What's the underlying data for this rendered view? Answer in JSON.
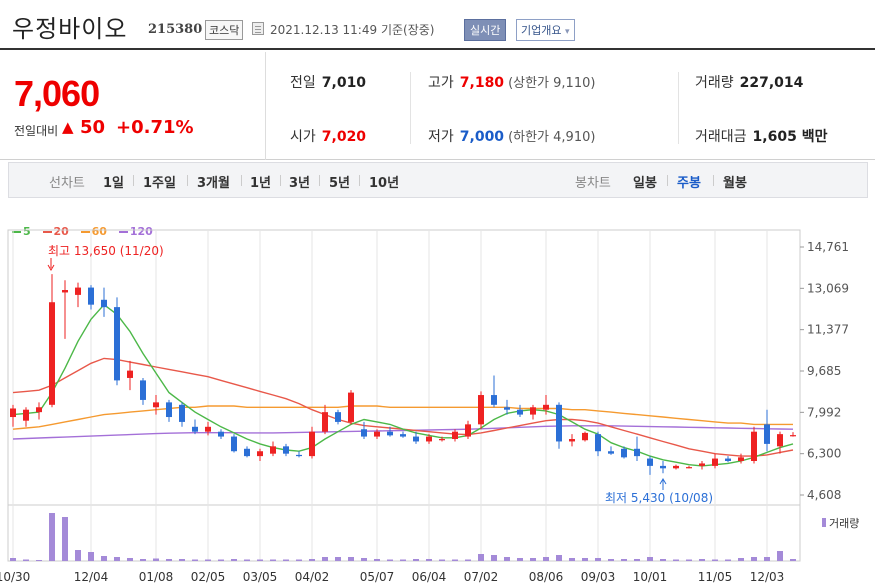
{
  "header": {
    "name": "우정바이오",
    "code": "215380",
    "market": "코스닥",
    "datetime": "2021.12.13 11:49",
    "basis": "기준(장중)",
    "realtime_btn": "실시간",
    "overview_btn": "기업개요"
  },
  "price": {
    "current": "7,060",
    "change_label": "전일대비",
    "change_arrow": "▲",
    "change": "50",
    "change_pct": "+0.71%"
  },
  "stats": {
    "prev_label": "전일",
    "prev": "7,010",
    "open_label": "시가",
    "open": "7,020",
    "high_label": "고가",
    "high": "7,180",
    "upper_limit": "(상한가 9,110)",
    "low_label": "저가",
    "low": "7,000",
    "lower_limit": "(하한가 4,910)",
    "volume_label": "거래량",
    "volume": "227,014",
    "amount_label": "거래대금",
    "amount": "1,605 백만"
  },
  "period": {
    "line_label": "선차트",
    "line_options": [
      "1일",
      "1주일",
      "3개월",
      "1년",
      "3년",
      "5년",
      "10년"
    ],
    "candle_label": "봉차트",
    "candle_options": [
      "일봉",
      "주봉",
      "월봉"
    ],
    "active": "주봉"
  },
  "colors": {
    "up": "#e22",
    "down": "#2b6fd6",
    "ma5": "#4cb848",
    "ma20": "#e8584a",
    "ma60": "#f59a30",
    "ma120": "#a470d8",
    "volume": "#a48ad8"
  },
  "chart_data": {
    "type": "candlestick",
    "legend": [
      {
        "name": "5",
        "color": "#4cb848"
      },
      {
        "name": "20",
        "color": "#e8584a"
      },
      {
        "name": "60",
        "color": "#f59a30"
      },
      {
        "name": "120",
        "color": "#a470d8"
      }
    ],
    "y_ticks": [
      "14,761",
      "13,069",
      "11,377",
      "9,685",
      "7,992",
      "6,300",
      "4,608"
    ],
    "y_tick_values": [
      14761,
      13069,
      11377,
      9685,
      7992,
      6300,
      4608
    ],
    "x_ticks": [
      "10/30",
      "12/04",
      "01/08",
      "02/05",
      "03/05",
      "04/02",
      "05/07",
      "06/04",
      "07/02",
      "08/06",
      "09/03",
      "10/01",
      "11/05",
      "12/03"
    ],
    "x_tick_index": [
      0,
      6,
      11,
      15,
      19,
      23,
      28,
      32,
      36,
      41,
      45,
      49,
      54,
      58
    ],
    "annotation_high": "최고 13,650 (11/20)",
    "annotation_high_index": 3,
    "annotation_high_value": 13650,
    "annotation_low": "최저 5,430 (10/08)",
    "annotation_low_index": 50,
    "annotation_low_value": 5430,
    "volume_label": "거래량",
    "candles": [
      {
        "o": 7800,
        "h": 8300,
        "l": 7400,
        "c": 8150
      },
      {
        "o": 7650,
        "h": 8200,
        "l": 7400,
        "c": 8100
      },
      {
        "o": 8000,
        "h": 8400,
        "l": 7700,
        "c": 8200
      },
      {
        "o": 8300,
        "h": 13650,
        "l": 8200,
        "c": 12500
      },
      {
        "o": 12900,
        "h": 13400,
        "l": 11000,
        "c": 13000
      },
      {
        "o": 12800,
        "h": 13300,
        "l": 12300,
        "c": 13100
      },
      {
        "o": 13100,
        "h": 13200,
        "l": 12200,
        "c": 12400
      },
      {
        "o": 12600,
        "h": 13100,
        "l": 11900,
        "c": 12300
      },
      {
        "o": 12300,
        "h": 12700,
        "l": 9100,
        "c": 9300
      },
      {
        "o": 9400,
        "h": 10100,
        "l": 8900,
        "c": 9700
      },
      {
        "o": 9300,
        "h": 9400,
        "l": 8300,
        "c": 8500
      },
      {
        "o": 8200,
        "h": 8700,
        "l": 7900,
        "c": 8400
      },
      {
        "o": 8400,
        "h": 8500,
        "l": 7600,
        "c": 7800
      },
      {
        "o": 8300,
        "h": 8400,
        "l": 7400,
        "c": 7600
      },
      {
        "o": 7400,
        "h": 7700,
        "l": 7100,
        "c": 7200
      },
      {
        "o": 7200,
        "h": 7600,
        "l": 7050,
        "c": 7400
      },
      {
        "o": 7200,
        "h": 7300,
        "l": 6900,
        "c": 7000
      },
      {
        "o": 7000,
        "h": 7100,
        "l": 6350,
        "c": 6400
      },
      {
        "o": 6500,
        "h": 6600,
        "l": 6150,
        "c": 6200
      },
      {
        "o": 6200,
        "h": 6500,
        "l": 6000,
        "c": 6400
      },
      {
        "o": 6300,
        "h": 6800,
        "l": 6200,
        "c": 6600
      },
      {
        "o": 6600,
        "h": 6700,
        "l": 6200,
        "c": 6300
      },
      {
        "o": 6250,
        "h": 6400,
        "l": 6150,
        "c": 6200
      },
      {
        "o": 6200,
        "h": 7400,
        "l": 6100,
        "c": 7200
      },
      {
        "o": 7200,
        "h": 8300,
        "l": 7100,
        "c": 8000
      },
      {
        "o": 8000,
        "h": 8100,
        "l": 7500,
        "c": 7600
      },
      {
        "o": 7600,
        "h": 8900,
        "l": 7500,
        "c": 8800
      },
      {
        "o": 7300,
        "h": 7600,
        "l": 6900,
        "c": 7000
      },
      {
        "o": 7000,
        "h": 7300,
        "l": 6900,
        "c": 7200
      },
      {
        "o": 7200,
        "h": 7400,
        "l": 7000,
        "c": 7050
      },
      {
        "o": 7100,
        "h": 7200,
        "l": 6950,
        "c": 7000
      },
      {
        "o": 7000,
        "h": 7200,
        "l": 6700,
        "c": 6800
      },
      {
        "o": 6800,
        "h": 7100,
        "l": 6700,
        "c": 7000
      },
      {
        "o": 6850,
        "h": 7000,
        "l": 6800,
        "c": 6900
      },
      {
        "o": 6900,
        "h": 7300,
        "l": 6800,
        "c": 7200
      },
      {
        "o": 7000,
        "h": 7650,
        "l": 6900,
        "c": 7500
      },
      {
        "o": 7500,
        "h": 8850,
        "l": 7300,
        "c": 8700
      },
      {
        "o": 8700,
        "h": 9500,
        "l": 8200,
        "c": 8300
      },
      {
        "o": 8200,
        "h": 8500,
        "l": 7900,
        "c": 8100
      },
      {
        "o": 8100,
        "h": 8300,
        "l": 7800,
        "c": 7900
      },
      {
        "o": 7900,
        "h": 8300,
        "l": 7700,
        "c": 8200
      },
      {
        "o": 8100,
        "h": 8700,
        "l": 7900,
        "c": 8300
      },
      {
        "o": 8300,
        "h": 8400,
        "l": 6500,
        "c": 6800
      },
      {
        "o": 6800,
        "h": 7100,
        "l": 6600,
        "c": 6900
      },
      {
        "o": 6850,
        "h": 7200,
        "l": 6800,
        "c": 7150
      },
      {
        "o": 7100,
        "h": 7200,
        "l": 6200,
        "c": 6400
      },
      {
        "o": 6400,
        "h": 6600,
        "l": 6250,
        "c": 6300
      },
      {
        "o": 6500,
        "h": 6600,
        "l": 6100,
        "c": 6150
      },
      {
        "o": 6500,
        "h": 7000,
        "l": 6000,
        "c": 6200
      },
      {
        "o": 6100,
        "h": 6200,
        "l": 5430,
        "c": 5800
      },
      {
        "o": 5800,
        "h": 6000,
        "l": 5500,
        "c": 5700
      },
      {
        "o": 5700,
        "h": 5850,
        "l": 5650,
        "c": 5800
      },
      {
        "o": 5750,
        "h": 5800,
        "l": 5700,
        "c": 5750
      },
      {
        "o": 5800,
        "h": 6000,
        "l": 5650,
        "c": 5900
      },
      {
        "o": 5800,
        "h": 6300,
        "l": 5700,
        "c": 6100
      },
      {
        "o": 6100,
        "h": 6200,
        "l": 5950,
        "c": 6000
      },
      {
        "o": 6000,
        "h": 6300,
        "l": 5900,
        "c": 6150
      },
      {
        "o": 6000,
        "h": 7400,
        "l": 5900,
        "c": 7200
      },
      {
        "o": 7500,
        "h": 8100,
        "l": 6400,
        "c": 6700
      },
      {
        "o": 6600,
        "h": 7200,
        "l": 6300,
        "c": 7100
      },
      {
        "o": 7010,
        "h": 7180,
        "l": 7000,
        "c": 7060
      }
    ],
    "volumes": [
      30,
      15,
      10,
      480,
      440,
      110,
      90,
      50,
      40,
      30,
      20,
      25,
      20,
      20,
      15,
      15,
      15,
      20,
      15,
      15,
      15,
      15,
      15,
      20,
      40,
      40,
      40,
      30,
      20,
      15,
      15,
      20,
      20,
      15,
      15,
      15,
      70,
      60,
      40,
      30,
      30,
      40,
      60,
      30,
      30,
      30,
      20,
      20,
      20,
      40,
      20,
      15,
      15,
      20,
      15,
      15,
      30,
      40,
      40,
      100,
      20
    ],
    "ma5": [
      7900,
      7950,
      8000,
      8800,
      9800,
      10900,
      11800,
      12400,
      12000,
      11300,
      10400,
      9600,
      8800,
      8400,
      8000,
      7700,
      7400,
      7150,
      6900,
      6700,
      6550,
      6450,
      6400,
      6550,
      6900,
      7200,
      7500,
      7700,
      7600,
      7500,
      7300,
      7150,
      7050,
      6950,
      6950,
      7050,
      7350,
      7700,
      7950,
      8050,
      8100,
      8050,
      7900,
      7600,
      7300,
      7100,
      6750,
      6550,
      6400,
      6200,
      6050,
      5950,
      5850,
      5800,
      5850,
      5900,
      6000,
      6150,
      6350,
      6550,
      6700
    ],
    "ma20": [
      8800,
      8850,
      8900,
      9100,
      9400,
      9700,
      10000,
      10200,
      10150,
      10050,
      9950,
      9850,
      9750,
      9650,
      9550,
      9450,
      9300,
      9150,
      9000,
      8850,
      8700,
      8550,
      8350,
      8100,
      7900,
      7700,
      7550,
      7450,
      7400,
      7350,
      7300,
      7250,
      7200,
      7150,
      7100,
      7080,
      7150,
      7250,
      7350,
      7450,
      7550,
      7650,
      7700,
      7700,
      7650,
      7550,
      7400,
      7250,
      7100,
      6950,
      6800,
      6650,
      6500,
      6400,
      6300,
      6250,
      6200,
      6200,
      6250,
      6350,
      6450
    ],
    "ma60": [
      7300,
      7350,
      7400,
      7500,
      7600,
      7700,
      7800,
      7900,
      7950,
      8000,
      8050,
      8100,
      8150,
      8200,
      8200,
      8250,
      8250,
      8250,
      8200,
      8200,
      8200,
      8200,
      8200,
      8200,
      8200,
      8200,
      8250,
      8250,
      8250,
      8200,
      8200,
      8200,
      8200,
      8200,
      8200,
      8200,
      8200,
      8200,
      8200,
      8150,
      8150,
      8150,
      8150,
      8100,
      8100,
      8050,
      8000,
      7950,
      7900,
      7850,
      7800,
      7750,
      7700,
      7650,
      7600,
      7550,
      7550,
      7500,
      7500,
      7500,
      7500
    ],
    "ma120": [
      6900,
      6920,
      6940,
      6960,
      6980,
      7000,
      7020,
      7040,
      7060,
      7080,
      7100,
      7120,
      7140,
      7150,
      7160,
      7160,
      7160,
      7160,
      7150,
      7150,
      7150,
      7160,
      7170,
      7180,
      7190,
      7200,
      7210,
      7220,
      7230,
      7240,
      7250,
      7260,
      7270,
      7280,
      7290,
      7300,
      7320,
      7340,
      7360,
      7380,
      7400,
      7420,
      7430,
      7440,
      7440,
      7440,
      7440,
      7430,
      7420,
      7410,
      7400,
      7390,
      7380,
      7370,
      7360,
      7350,
      7340,
      7330,
      7320,
      7310,
      7300
    ]
  }
}
